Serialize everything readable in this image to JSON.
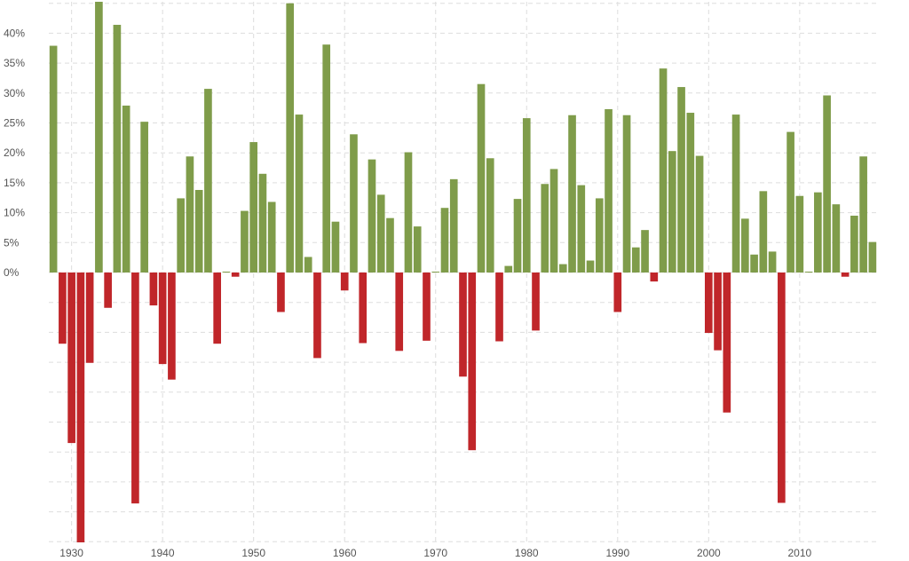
{
  "chart_data": {
    "type": "bar",
    "title": "",
    "xlabel": "",
    "ylabel": "",
    "ylim": [
      -45,
      45
    ],
    "grid": true,
    "legend": "none",
    "positive_color": "#7f9c4a",
    "negative_color": "#c0262a",
    "y_ticks": [
      {
        "value": 0,
        "label": "0%"
      },
      {
        "value": 5,
        "label": "5%"
      },
      {
        "value": 10,
        "label": "10%"
      },
      {
        "value": 15,
        "label": "15%"
      },
      {
        "value": 20,
        "label": "20%"
      },
      {
        "value": 25,
        "label": "25%"
      },
      {
        "value": 30,
        "label": "30%"
      },
      {
        "value": 35,
        "label": "35%"
      },
      {
        "value": 40,
        "label": "40%"
      }
    ],
    "x_ticks": [
      {
        "value": 1930,
        "label": "1930"
      },
      {
        "value": 1940,
        "label": "1940"
      },
      {
        "value": 1950,
        "label": "1950"
      },
      {
        "value": 1960,
        "label": "1960"
      },
      {
        "value": 1970,
        "label": "1970"
      },
      {
        "value": 1980,
        "label": "1980"
      },
      {
        "value": 1990,
        "label": "1990"
      },
      {
        "value": 2000,
        "label": "2000"
      },
      {
        "value": 2010,
        "label": "2010"
      }
    ],
    "x": [
      1928,
      1929,
      1930,
      1931,
      1932,
      1933,
      1934,
      1935,
      1936,
      1937,
      1938,
      1939,
      1940,
      1941,
      1942,
      1943,
      1944,
      1945,
      1946,
      1947,
      1948,
      1949,
      1950,
      1951,
      1952,
      1953,
      1954,
      1955,
      1956,
      1957,
      1958,
      1959,
      1960,
      1961,
      1962,
      1963,
      1964,
      1965,
      1966,
      1967,
      1968,
      1969,
      1970,
      1971,
      1972,
      1973,
      1974,
      1975,
      1976,
      1977,
      1978,
      1979,
      1980,
      1981,
      1982,
      1983,
      1984,
      1985,
      1986,
      1987,
      1988,
      1989,
      1990,
      1991,
      1992,
      1993,
      1994,
      1995,
      1996,
      1997,
      1998,
      1999,
      2000,
      2001,
      2002,
      2003,
      2004,
      2005,
      2006,
      2007,
      2008,
      2009,
      2010,
      2011,
      2012,
      2013,
      2014,
      2015,
      2016,
      2017,
      2018
    ],
    "values": [
      37.9,
      -11.9,
      -28.5,
      -47.1,
      -15.1,
      46.6,
      -5.9,
      41.4,
      27.9,
      -38.6,
      25.2,
      -5.5,
      -15.3,
      -17.9,
      12.4,
      19.4,
      13.8,
      30.7,
      -11.9,
      0.0,
      -0.7,
      10.3,
      21.8,
      16.5,
      11.8,
      -6.6,
      45.0,
      26.4,
      2.6,
      -14.3,
      38.1,
      8.5,
      -3.0,
      23.1,
      -11.8,
      18.9,
      13.0,
      9.1,
      -13.1,
      20.1,
      7.7,
      -11.4,
      0.1,
      10.8,
      15.6,
      -17.4,
      -29.7,
      31.5,
      19.1,
      -11.5,
      1.1,
      12.3,
      25.8,
      -9.7,
      14.8,
      17.3,
      1.4,
      26.3,
      14.6,
      2.0,
      12.4,
      27.3,
      -6.6,
      26.3,
      4.2,
      7.1,
      -1.5,
      34.1,
      20.3,
      31.0,
      26.7,
      19.5,
      -10.1,
      -13.0,
      -23.4,
      26.4,
      9.0,
      3.0,
      13.6,
      3.5,
      -38.5,
      23.5,
      12.8,
      0.1,
      13.4,
      29.6,
      11.4,
      -0.7,
      9.5,
      19.4,
      5.1
    ]
  }
}
